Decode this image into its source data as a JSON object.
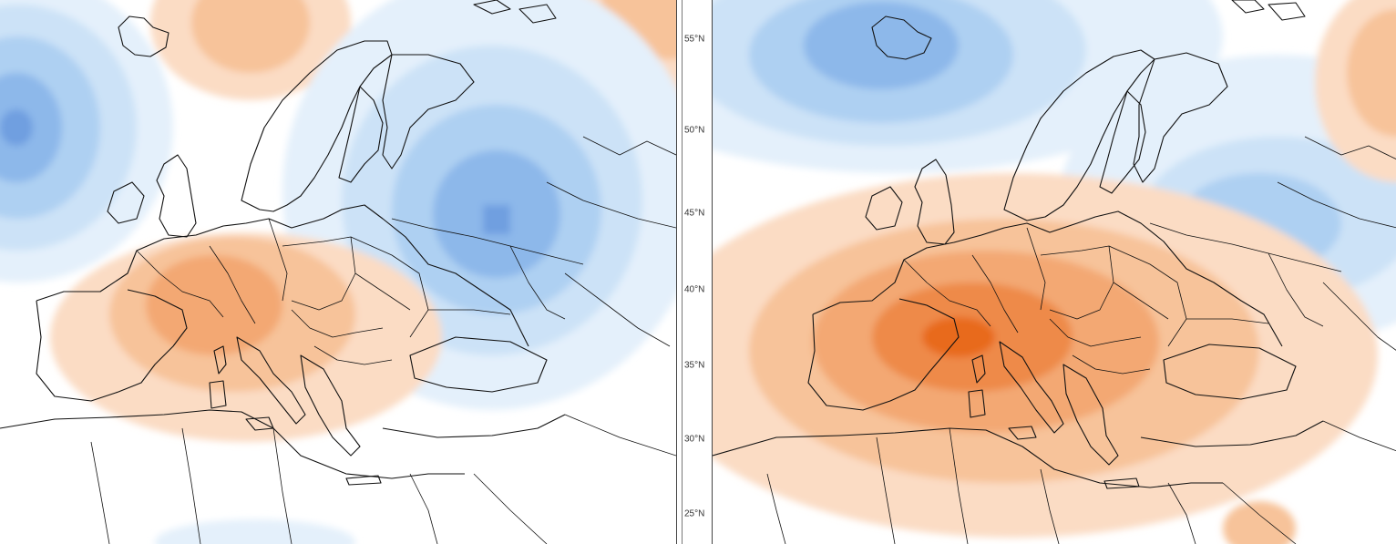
{
  "panels": [
    {
      "id": "left-anomaly-map",
      "palette": {
        "warm": [
          "#fbdcc4",
          "#f7c39a",
          "#f3a873",
          "#ee8a4a"
        ],
        "cool": [
          "#e4f0fb",
          "#cce2f7",
          "#aed0f2",
          "#8db8ea",
          "#6f9fe0"
        ]
      }
    },
    {
      "id": "right-anomaly-map",
      "palette": {
        "warm": [
          "#fbdcc4",
          "#f7c39a",
          "#f3a873",
          "#ee8a4a",
          "#e86a1f"
        ],
        "cool": [
          "#e4f0fb",
          "#cce2f7",
          "#aed0f2",
          "#8db8ea"
        ]
      }
    }
  ],
  "latitude_labels": [
    "55°N",
    "50°N",
    "45°N",
    "40°N",
    "35°N",
    "30°N",
    "25°N"
  ]
}
